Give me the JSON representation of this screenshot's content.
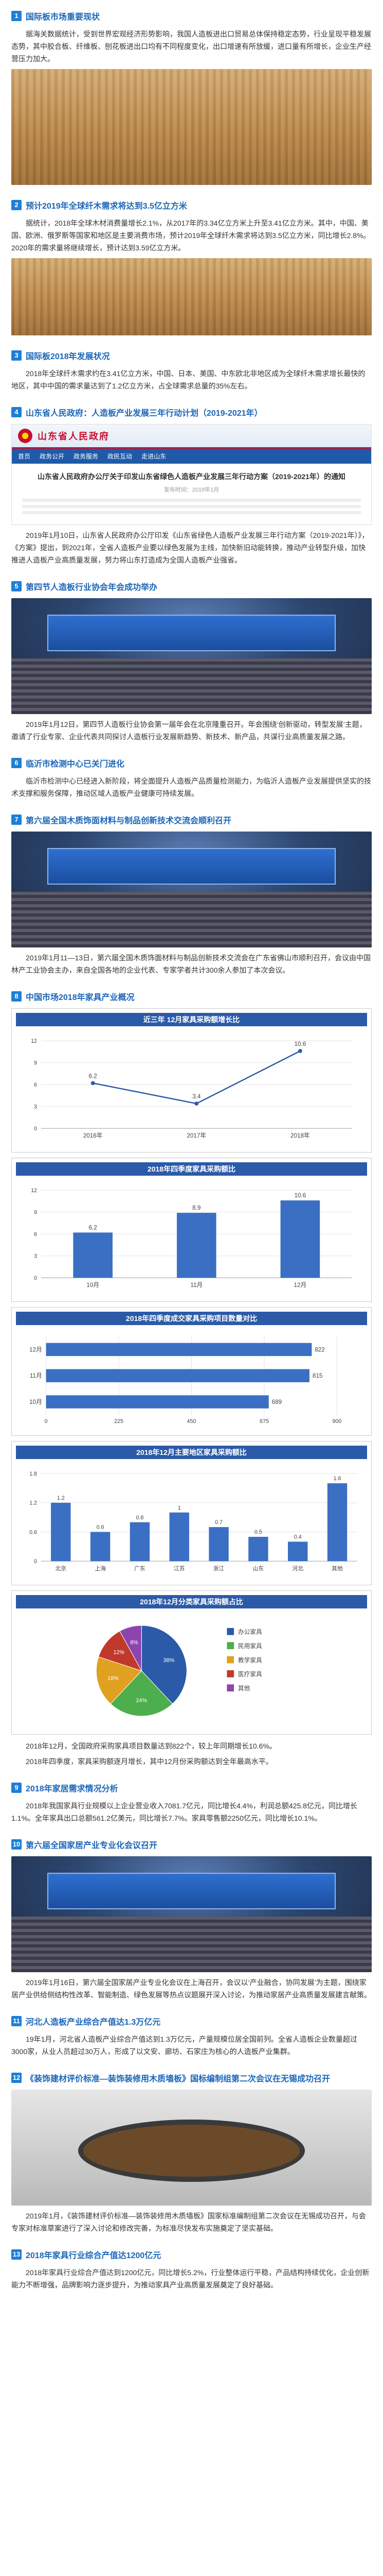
{
  "sections": [
    {
      "num": "1",
      "title": "国际板市场重要现状",
      "paras": [
        "据海关数据统计，受到世界宏观经济形势影响，我国人造板进出口贸易总体保持稳定态势，行业呈现平稳发展态势，其中胶合板、纤维板、刨花板进出口均有不同程度变化，出口增速有所放缓，进口量有所增长，企业生产经营压力加大。"
      ],
      "photo": "wood"
    },
    {
      "num": "2",
      "title": "预计2019年全球纤木需求将达到3.5亿立方米",
      "paras": [
        "据统计，2018年全球木材消费量增长2.1%，从2017年的3.34亿立方米上升至3.41亿立方米。其中，中国、美国、欧洲、俄罗斯等国家和地区是主要消费市场，预计2019年全球纤木需求将达到3.5亿立方米，同比增长2.8%。2020年的需求量将继续增长，预计达到3.59亿立方米。"
      ]
    },
    {
      "num": "3",
      "title": "国际板2018年发展状况",
      "paras": [
        "2018年全球纤木需求约在3.41亿立方米，中国、日本、美国、中东欧北非地区成为全球纤木需求增长最快的地区，其中中国的需求量达到了1.2亿立方米，占全球需求总量的35%左右。"
      ]
    },
    {
      "num": "4",
      "title": "山东省人民政府：人造板产业发展三年行动计划（2019-2021年）",
      "gov": {
        "name": "山东省人民政府",
        "nav": [
          "首页",
          "政务公开",
          "政务服务",
          "政民互动",
          "走进山东"
        ],
        "doc_title": "山东省人民政府办公厅关于印发山东省绿色人造板产业发展三年行动方案（2019-2021年）的通知",
        "doc_meta": "发布时间：2019年1月"
      },
      "paras": [
        "2019年1月10日，山东省人民政府办公厅印发《山东省绿色人造板产业发展三年行动方案（2019-2021年）》，《方案》提出，到2021年，全省人造板产业要以绿色发展为主线，加快新旧动能转换，推动产业转型升级，加快推进人造板产业高质量发展，努力将山东打造成为全国人造板产业强省。"
      ]
    },
    {
      "num": "5",
      "title": "第四节人造板行业协会年会成功举办",
      "paras": [
        "2019年1月12日，第四节人造板行业协会第一届年会在北京隆重召开。年会围绕‘创新驱动，转型发展’主题，邀请了行业专家、企业代表共同探讨人造板行业发展新趋势、新技术、新产品，共谋行业高质量发展之路。"
      ],
      "photo": "conf"
    },
    {
      "num": "6",
      "title": "临沂市检测中心已关门进化",
      "paras": [
        "临沂市检测中心已经进入新阶段，将全面提升人造板产品质量检测能力，为临沂人造板产业发展提供坚实的技术支撑和服务保障，推动区域人造板产业健康可持续发展。"
      ]
    },
    {
      "num": "7",
      "title": "第六届全国木质饰面材料与制品创新技术交流会顺利召开",
      "paras": [
        "2019年1月11—13日，第六届全国木质饰面材料与制品创新技术交流会在广东省佛山市顺利召开，会议由中国林产工业协会主办，来自全国各地的企业代表、专家学者共计300余人参加了本次会议。"
      ],
      "photo": "conf"
    },
    {
      "num": "8",
      "title": "中国市场2018年家具产业概况",
      "paras": []
    },
    {
      "num": "9",
      "title": "2018年家居需求情况分析",
      "paras": [
        "2018年我国家具行业规模以上企业营业收入7081.7亿元，同比增长4.4%，利润总额425.8亿元，同比增长1.1%。全年家具出口总额561.2亿美元，同比增长7.7%。家具零售额2250亿元，同比增长10.1%。"
      ]
    },
    {
      "num": "10",
      "title": "第六届全国家居产业专业化会议召开",
      "paras": [
        "2019年1月16日，第六届全国家居产业专业化会议在上海召开，会议以‘产业融合，协同发展’为主题，围绕家居产业供给侧结构性改革、智能制造、绿色发展等热点议题展开深入讨论，为推动家居产业高质量发展建言献策。"
      ],
      "photo": "conf"
    },
    {
      "num": "11",
      "title": "河北人造板产业综合产值达1.3万亿元",
      "paras": [
        "19年1月，河北省人造板产业综合产值达到1.3万亿元，产量规模位居全国前列。全省人造板企业数量超过3000家，从业人员超过30万人，形成了以文安、廊坊、石家庄为核心的人造板产业集群。"
      ]
    },
    {
      "num": "12",
      "title": "《装饰建材评价标准—装饰装修用木质墙板》国标编制组第二次会议在无锡成功召开",
      "paras": [
        "2019年1月，《装饰建材评价标准—装饰装修用木质墙板》国家标准编制组第二次会议在无锡成功召开，与会专家对标准草案进行了深入讨论和修改完善，为标准尽快发布实施奠定了坚实基础。"
      ],
      "photo": "meeting"
    },
    {
      "num": "13",
      "title": "2018年家具行业综合产值达1200亿元",
      "paras": [
        "2018年家具行业综合产值达到1200亿元，同比增长5.2%，行业整体运行平稳，产品结构持续优化，企业创新能力不断增强，品牌影响力逐步提升，为推动家具产业高质量发展奠定了良好基础。"
      ]
    }
  ],
  "chart_data": [
    {
      "type": "line",
      "title": "近三年 12月家具采购额增长比",
      "categories": [
        "2016年",
        "2017年",
        "2018年"
      ],
      "values": [
        6.2,
        3.4,
        10.6
      ],
      "ylim": [
        0,
        12
      ]
    },
    {
      "type": "bar",
      "title": "2018年四季度家具采购额比",
      "categories": [
        "10月",
        "11月",
        "12月"
      ],
      "values": [
        6.2,
        8.9,
        10.6
      ],
      "ylim": [
        0,
        12
      ]
    },
    {
      "type": "bar",
      "title": "2018年四季度成交家具采购项目数量对比",
      "orientation": "horizontal",
      "categories": [
        "12月",
        "11月",
        "10月"
      ],
      "values": [
        822,
        815,
        689
      ],
      "xlim": [
        0,
        900
      ]
    },
    {
      "type": "bar",
      "title": "2018年12月主要地区家具采购额比",
      "categories": [
        "北京",
        "上海",
        "广东",
        "江苏",
        "浙江",
        "山东",
        "河北",
        "其他"
      ],
      "values": [
        1.2,
        0.6,
        0.8,
        1.0,
        0.7,
        0.5,
        0.4,
        1.6
      ],
      "ylim": [
        0,
        1.8
      ]
    },
    {
      "type": "pie",
      "title": "2018年12月分类家具采购额占比",
      "categories": [
        "办公家具",
        "民用家具",
        "教学家具",
        "医疗家具",
        "其他"
      ],
      "values": [
        38,
        24,
        18,
        12,
        8
      ],
      "colors": [
        "#2b5aa8",
        "#4cae4c",
        "#e0a020",
        "#c0392b",
        "#8e44ad"
      ]
    }
  ],
  "chart_notes": [
    "2018年12月，全国政府采购家具项目数量达到822个，较上年同期增长10.6%。",
    "2018年四季度，家具采购额逐月增长，其中12月份采购额达到全年最高水平。"
  ]
}
